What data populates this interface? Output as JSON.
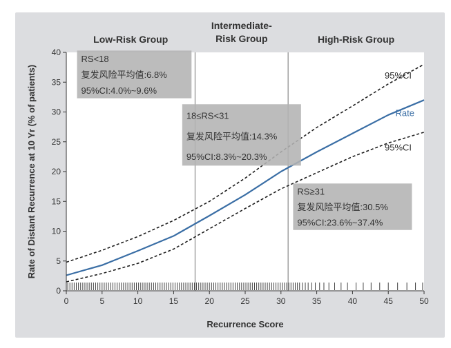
{
  "colors": {
    "background": "#ffffff",
    "panel": "#dcdde0",
    "rate_line": "#3a6ea5",
    "ci_line": "#1e1e1e",
    "cutoff_line": "#8a8a8a",
    "box_fill": "#b3b3b3"
  },
  "chart_data": {
    "type": "line",
    "title": "",
    "xlabel": "Recurrence Score",
    "ylabel": "Rate of Distant Recurrence at 10 Yr (% of patients)",
    "xlim": [
      0,
      50
    ],
    "ylim": [
      0,
      40
    ],
    "xticks": [
      0,
      5,
      10,
      15,
      20,
      25,
      30,
      35,
      40,
      45,
      50
    ],
    "yticks": [
      0,
      5,
      10,
      15,
      20,
      25,
      30,
      35,
      40
    ],
    "grid": false,
    "x": [
      0,
      5,
      10,
      15,
      20,
      25,
      30,
      35,
      40,
      45,
      50
    ],
    "series": [
      {
        "name": "Rate",
        "style": "solid",
        "color": "#3a6ea5",
        "values": [
          2.6,
          4.3,
          6.7,
          9.2,
          12.6,
          16.1,
          20.0,
          23.3,
          26.4,
          29.5,
          32.0
        ]
      },
      {
        "name": "95%CI",
        "style": "dashed",
        "color": "#1e1e1e",
        "values": [
          4.8,
          6.8,
          9.1,
          11.8,
          15.0,
          18.9,
          23.3,
          27.4,
          31.0,
          34.7,
          38.0
        ]
      },
      {
        "name": "95%CI",
        "style": "dashed",
        "color": "#1e1e1e",
        "values": [
          1.5,
          2.9,
          4.6,
          7.0,
          10.4,
          13.8,
          17.1,
          19.8,
          22.5,
          24.8,
          26.6
        ]
      }
    ],
    "series_labels": [
      {
        "text": "95%CI",
        "x": 44.5,
        "y": 35.6
      },
      {
        "text": "Rate",
        "x": 46.0,
        "y": 29.3
      },
      {
        "text": "95%CI",
        "x": 44.5,
        "y": 23.5
      }
    ],
    "cutoffs": [
      18,
      31
    ],
    "groups": [
      {
        "label": [
          "Low-Risk Group"
        ],
        "x": 9
      },
      {
        "label": [
          "Intermediate-",
          "Risk Group"
        ],
        "x": 24.5
      },
      {
        "label": [
          "High-Risk Group"
        ],
        "x": 40.5
      }
    ],
    "annotations": [
      {
        "lines": [
          "RS<18",
          "复发风险平均值:6.8%",
          "95%CI:4.0%~9.6%"
        ],
        "x0": 1.5,
        "x1": 17.5,
        "y0": 32.3,
        "y1": 40.3
      },
      {
        "lines": [
          "18≤RS<31",
          "复发风险平均值:14.3%",
          "95%CI:8.3%~20.3%"
        ],
        "x0": 16.2,
        "x1": 32.8,
        "y0": 21.0,
        "y1": 31.3
      },
      {
        "lines": [
          "RS≥31",
          "复发风险平均值:30.5%",
          "95%CI:23.6%~37.4%"
        ],
        "x0": 31.7,
        "x1": 48.3,
        "y0": 10.2,
        "y1": 18.0
      }
    ],
    "rug_x": [
      0.2,
      0.5,
      0.8,
      1.1,
      1.4,
      1.7,
      2.0,
      2.3,
      2.6,
      2.9,
      3.2,
      3.5,
      3.8,
      4.1,
      4.4,
      4.7,
      5.0,
      5.3,
      5.6,
      5.9,
      6.2,
      6.5,
      6.8,
      7.1,
      7.4,
      7.7,
      8.0,
      8.3,
      8.6,
      8.9,
      9.2,
      9.5,
      9.8,
      10.1,
      10.4,
      10.7,
      11.0,
      11.3,
      11.6,
      11.9,
      12.2,
      12.5,
      12.8,
      13.1,
      13.4,
      13.7,
      14.0,
      14.3,
      14.6,
      14.9,
      15.2,
      15.5,
      15.8,
      16.1,
      16.4,
      16.7,
      17.0,
      17.3,
      17.6,
      17.9,
      18.2,
      18.5,
      18.8,
      19.1,
      19.4,
      19.7,
      20.0,
      20.3,
      20.6,
      20.9,
      21.2,
      21.5,
      21.8,
      22.1,
      22.4,
      22.7,
      23.0,
      23.3,
      23.6,
      23.9,
      24.2,
      24.5,
      24.8,
      25.1,
      25.4,
      25.7,
      26.0,
      26.3,
      26.6,
      26.9,
      27.2,
      27.5,
      27.8,
      28.1,
      28.4,
      28.7,
      29.0,
      29.3,
      29.6,
      29.9,
      30.2,
      30.5,
      30.8,
      31.1,
      31.4,
      31.7,
      32.0,
      32.3,
      32.6,
      33.0,
      33.4,
      33.8,
      34.3,
      34.8,
      35.4,
      36.0,
      36.7,
      37.5,
      38.4,
      39.3,
      40.5,
      41.5,
      42.6,
      43.8,
      45.0,
      46.3,
      47.6,
      48.8,
      49.8
    ]
  }
}
